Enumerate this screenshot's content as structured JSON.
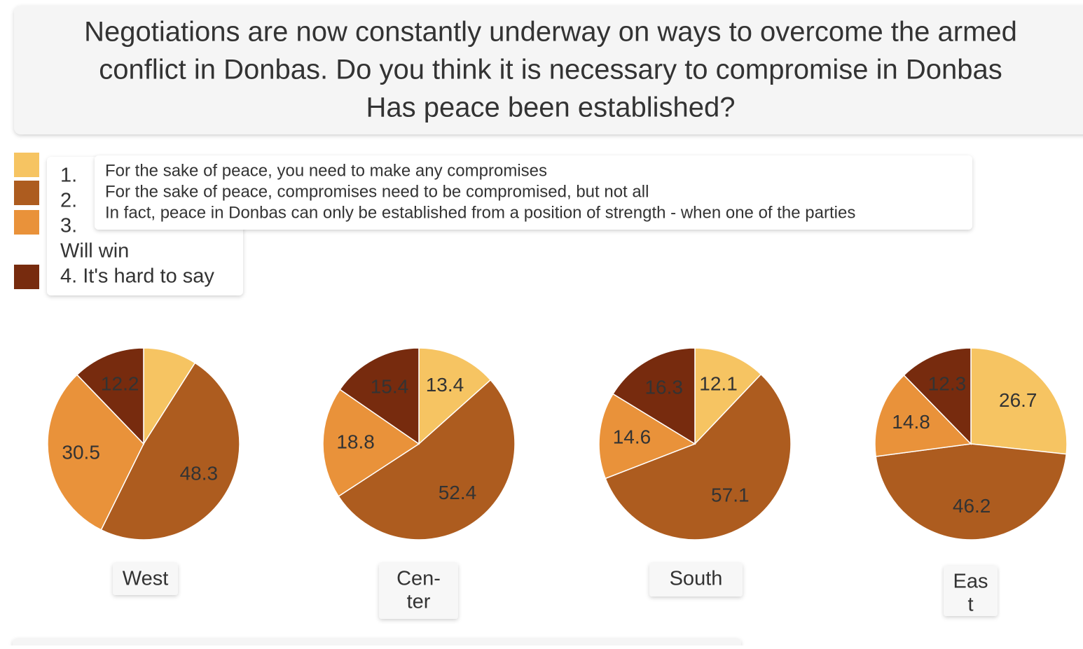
{
  "title": [
    "Negotiations are now constantly underway on ways to overcome the armed",
    "conflict in Donbas. Do you think it is necessary to compromise in Donbas",
    "Has peace been established?"
  ],
  "legend": {
    "lines": [
      "1.",
      "2.",
      "3.",
      "Will win",
      "4. It's hard to say"
    ],
    "tooltip": [
      "For the sake of peace, you need to make any compromises",
      "For the sake of peace, compromises need to be compromised, but not all",
      "In fact, peace in Donbas can only be established from a position of strength - when one of the parties"
    ],
    "colors": [
      "#f6c462",
      "#ad5c1f",
      "#e9923a",
      "#772b0e"
    ]
  },
  "chart_data": [
    {
      "type": "pie",
      "label": [
        "West"
      ],
      "values": [
        9.0,
        48.3,
        30.5,
        12.2
      ]
    },
    {
      "type": "pie",
      "label": [
        "Cen-",
        "ter"
      ],
      "values": [
        13.4,
        52.4,
        18.8,
        15.4
      ]
    },
    {
      "type": "pie",
      "label": [
        "South"
      ],
      "values": [
        12.1,
        57.1,
        14.6,
        16.3
      ]
    },
    {
      "type": "pie",
      "label": [
        "Eas",
        "t"
      ],
      "values": [
        26.7,
        46.2,
        14.8,
        12.3
      ]
    }
  ]
}
